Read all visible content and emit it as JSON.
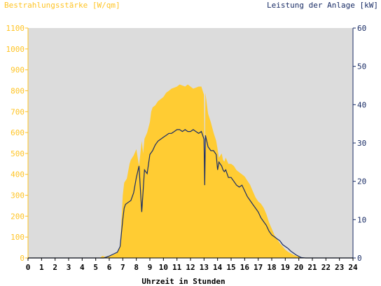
{
  "chart_data": {
    "type": "area",
    "ylabel_left": "Bestrahlungsstärke [W/qm]",
    "ylabel_right": "Leistung der Anlage [kW]",
    "xlabel": "Uhrzeit in Stunden",
    "x_range": [
      0,
      24
    ],
    "x_ticks": [
      "0",
      "1",
      "2",
      "3",
      "4",
      "5",
      "6",
      "7",
      "8",
      "9",
      "10",
      "11",
      "12",
      "13",
      "14",
      "15",
      "16",
      "17",
      "18",
      "19",
      "20",
      "21",
      "22",
      "23",
      "24"
    ],
    "y_left_range": [
      0,
      1100
    ],
    "y_left_ticks": [
      "0",
      "100",
      "200",
      "300",
      "400",
      "500",
      "600",
      "700",
      "800",
      "900",
      "1000",
      "1100"
    ],
    "y_right_range": [
      0,
      60
    ],
    "y_right_ticks": [
      "0",
      "10",
      "20",
      "30",
      "40",
      "50",
      "60"
    ],
    "grid": false,
    "colors": {
      "left_axis": "#ffc425",
      "right_axis": "#1a2d66",
      "area": "#ffcc33",
      "line": "#1a2d66",
      "plot_bg": "#dcdcdc"
    },
    "series": [
      {
        "axis": "left",
        "style": "area",
        "x": [
          0,
          5.3,
          5.5,
          5.7,
          6.0,
          6.3,
          6.6,
          6.8,
          7.0,
          7.1,
          7.3,
          7.5,
          7.6,
          7.8,
          8.0,
          8.2,
          8.4,
          8.5,
          8.6,
          8.8,
          9.0,
          9.1,
          9.2,
          9.4,
          9.6,
          9.8,
          10.0,
          10.2,
          10.4,
          10.6,
          10.8,
          11.0,
          11.2,
          11.4,
          11.6,
          11.8,
          12.0,
          12.2,
          12.4,
          12.6,
          12.8,
          13.0,
          13.05,
          13.1,
          13.3,
          13.5,
          13.7,
          13.9,
          14.0,
          14.1,
          14.3,
          14.4,
          14.5,
          14.6,
          14.8,
          15.0,
          15.2,
          15.4,
          15.6,
          15.8,
          16.0,
          16.2,
          16.4,
          16.6,
          16.8,
          17.0,
          17.2,
          17.4,
          17.6,
          17.8,
          18.0,
          18.2,
          18.4,
          18.6,
          18.8,
          19.0,
          19.2,
          19.4,
          19.6,
          19.8,
          20.0,
          20.2,
          20.5,
          24
        ],
        "values": [
          0,
          0,
          10,
          5,
          8,
          15,
          25,
          60,
          300,
          360,
          380,
          450,
          470,
          490,
          520,
          440,
          560,
          500,
          570,
          600,
          650,
          700,
          720,
          730,
          750,
          760,
          770,
          790,
          800,
          810,
          815,
          820,
          830,
          825,
          820,
          830,
          820,
          810,
          815,
          820,
          820,
          780,
          400,
          790,
          690,
          650,
          600,
          560,
          520,
          480,
          500,
          470,
          460,
          480,
          450,
          450,
          440,
          420,
          410,
          400,
          390,
          370,
          350,
          320,
          290,
          270,
          260,
          240,
          210,
          170,
          140,
          110,
          90,
          70,
          55,
          40,
          30,
          22,
          15,
          10,
          5,
          2,
          0,
          0
        ]
      },
      {
        "axis": "right",
        "style": "line",
        "x": [
          0,
          5.6,
          6.0,
          6.3,
          6.6,
          6.8,
          7.0,
          7.1,
          7.2,
          7.4,
          7.6,
          7.8,
          8.0,
          8.2,
          8.4,
          8.6,
          8.8,
          9.0,
          9.2,
          9.4,
          9.6,
          9.8,
          10.0,
          10.2,
          10.4,
          10.6,
          10.8,
          11.0,
          11.2,
          11.4,
          11.6,
          11.8,
          12.0,
          12.2,
          12.4,
          12.6,
          12.8,
          13.0,
          13.05,
          13.1,
          13.3,
          13.5,
          13.7,
          13.9,
          14.0,
          14.1,
          14.3,
          14.4,
          14.5,
          14.6,
          14.8,
          15.0,
          15.2,
          15.4,
          15.6,
          15.8,
          16.0,
          16.2,
          16.4,
          16.6,
          16.8,
          17.0,
          17.2,
          17.4,
          17.6,
          17.8,
          18.0,
          18.2,
          18.4,
          18.6,
          18.8,
          19.0,
          19.2,
          19.4,
          19.6,
          19.8,
          20.0,
          20.2,
          20.5,
          24
        ],
        "values": [
          0,
          0,
          0.5,
          1,
          1.5,
          3,
          10,
          13,
          14,
          14.5,
          15,
          17,
          21,
          24,
          12,
          23,
          22,
          27,
          28,
          29.5,
          30.5,
          31,
          31.5,
          32,
          32.5,
          32.5,
          33,
          33.5,
          33.5,
          33,
          33.5,
          33,
          33,
          33.5,
          33,
          32.5,
          33,
          31,
          19,
          32,
          29,
          28,
          28,
          27,
          23,
          25,
          24,
          23,
          22.5,
          23,
          21,
          21,
          20,
          19,
          18.5,
          19,
          17.5,
          16,
          15,
          14,
          13,
          12,
          10.5,
          9.5,
          8.5,
          7,
          6,
          5.5,
          5,
          4.5,
          3.5,
          3,
          2.5,
          1.8,
          1.3,
          0.8,
          0.4,
          0.1,
          0,
          0
        ]
      }
    ]
  }
}
